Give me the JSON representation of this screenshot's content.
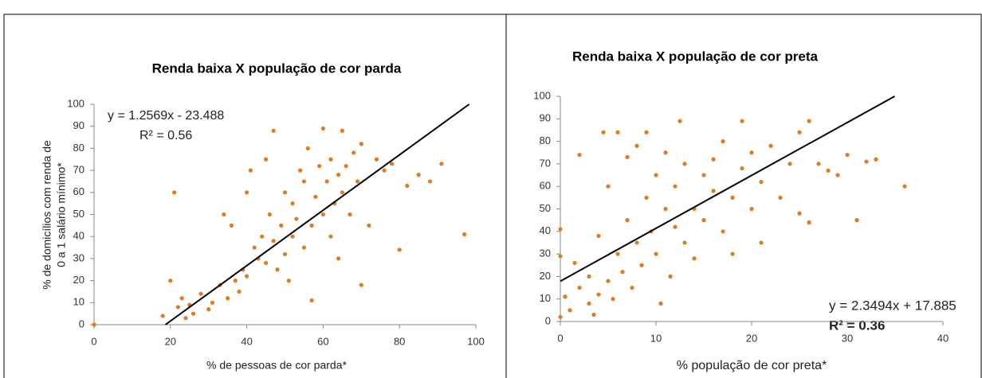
{
  "chart_data": [
    {
      "type": "scatter",
      "title": "Renda baixa X população de cor parda",
      "xlabel": "% de pessoas de cor parda*",
      "ylabel": [
        "% de domicílios com renda de",
        "0 a 1 salário mínimo*"
      ],
      "color": "#e07b1f",
      "xlim": [
        0,
        100
      ],
      "ylim": [
        0,
        100
      ],
      "xticks": [
        0,
        20,
        40,
        60,
        80,
        100
      ],
      "yticks": [
        0,
        10,
        20,
        30,
        40,
        50,
        60,
        70,
        80,
        90,
        100
      ],
      "trendline": {
        "slope": 1.2569,
        "intercept": -23.488,
        "color": "#000000"
      },
      "equation": "y = 1.2569x - 23.488",
      "r2": "R² = 0.56",
      "x": [
        18,
        20,
        21,
        22,
        23,
        24,
        25,
        26,
        28,
        30,
        31,
        33,
        34,
        35,
        36,
        37,
        38,
        39,
        40,
        40,
        41,
        42,
        43,
        44,
        45,
        45,
        46,
        47,
        47,
        48,
        49,
        50,
        50,
        51,
        52,
        52,
        53,
        54,
        55,
        55,
        56,
        57,
        57,
        58,
        59,
        60,
        60,
        61,
        62,
        62,
        63,
        64,
        64,
        65,
        65,
        66,
        67,
        68,
        69,
        70,
        70,
        72,
        74,
        76,
        78,
        80,
        82,
        85,
        88,
        91,
        97,
        0
      ],
      "y": [
        4,
        20,
        60,
        8,
        12,
        3,
        9,
        5,
        14,
        7,
        10,
        18,
        50,
        12,
        45,
        20,
        15,
        25,
        22,
        60,
        70,
        35,
        30,
        40,
        28,
        75,
        50,
        88,
        38,
        25,
        45,
        32,
        60,
        20,
        55,
        40,
        48,
        70,
        35,
        65,
        80,
        45,
        11,
        58,
        72,
        50,
        89,
        65,
        40,
        75,
        55,
        30,
        68,
        88,
        60,
        72,
        50,
        78,
        65,
        18,
        82,
        45,
        75,
        70,
        73,
        34,
        63,
        68,
        65,
        73,
        41,
        0
      ]
    },
    {
      "type": "scatter",
      "title": "Renda baixa X população de cor preta",
      "xlabel": "% população de cor preta*",
      "color": "#e07b1f",
      "xlim": [
        0,
        40
      ],
      "ylim": [
        0,
        100
      ],
      "xticks": [
        0,
        10,
        20,
        30,
        40
      ],
      "yticks": [
        0,
        10,
        20,
        30,
        40,
        50,
        60,
        70,
        80,
        90,
        100
      ],
      "trendline": {
        "slope": 2.3494,
        "intercept": 17.885,
        "color": "#000000"
      },
      "equation": "y = 2.3494x + 17.885",
      "r2": "R² = 0.36",
      "x": [
        0,
        0,
        0,
        0.5,
        1,
        1.5,
        2,
        2,
        3,
        3,
        3.5,
        4,
        4,
        4.5,
        5,
        5,
        5.5,
        6,
        6,
        6.5,
        7,
        7,
        7.5,
        8,
        8,
        8.5,
        9,
        9,
        9.5,
        10,
        10,
        10.5,
        11,
        11,
        11.5,
        12,
        12,
        12.5,
        13,
        13,
        14,
        14,
        15,
        15,
        16,
        16,
        17,
        17,
        18,
        18,
        19,
        19,
        20,
        20,
        21,
        21,
        22,
        23,
        24,
        25,
        25,
        26,
        26,
        27,
        28,
        29,
        30,
        31,
        32,
        33,
        36
      ],
      "y": [
        41,
        2,
        29,
        11,
        5,
        26,
        74,
        15,
        8,
        20,
        3,
        12,
        38,
        84,
        18,
        60,
        10,
        84,
        30,
        22,
        45,
        73,
        15,
        35,
        78,
        25,
        55,
        84,
        40,
        30,
        65,
        8,
        50,
        75,
        20,
        42,
        60,
        89,
        35,
        70,
        50,
        28,
        65,
        45,
        72,
        58,
        40,
        80,
        55,
        30,
        89,
        68,
        50,
        75,
        62,
        35,
        78,
        55,
        70,
        84,
        48,
        44,
        89,
        70,
        67,
        65,
        74,
        45,
        71,
        72,
        60
      ]
    }
  ]
}
